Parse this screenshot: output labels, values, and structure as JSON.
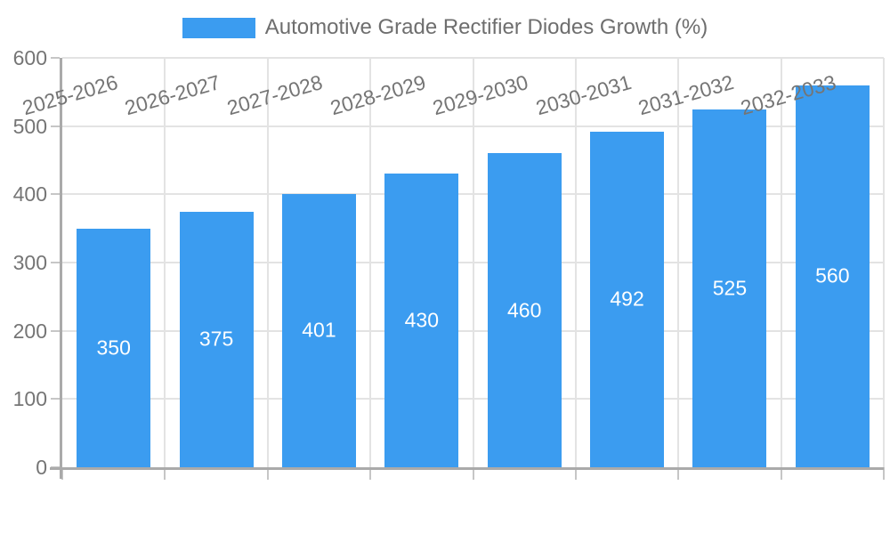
{
  "chart_data": {
    "type": "bar",
    "legend": "Automotive Grade Rectifier Diodes Growth (%)",
    "legend_position": "top",
    "categories": [
      "2025-2026",
      "2026-2027",
      "2027-2028",
      "2028-2029",
      "2029-2030",
      "2030-2031",
      "2031-2032",
      "2032-2033"
    ],
    "values": [
      350,
      375,
      401,
      430,
      460,
      492,
      525,
      560
    ],
    "xlabel": "",
    "ylabel": "",
    "ylim": [
      0,
      600
    ],
    "ytick_step": 100,
    "yticks": [
      0,
      100,
      200,
      300,
      400,
      500,
      600
    ],
    "grid": true,
    "value_labels": "centered-inside-bars",
    "xtick_rotation_deg": -16,
    "colors": {
      "bar": "#3B9CF0",
      "value_label": "#FFFFFF",
      "grid": "#E3E3E3",
      "axis": "#AAAAAA",
      "tick": "#C6C6C6",
      "tick_label": "#757575",
      "legend_text": "#6E6E6E"
    }
  }
}
